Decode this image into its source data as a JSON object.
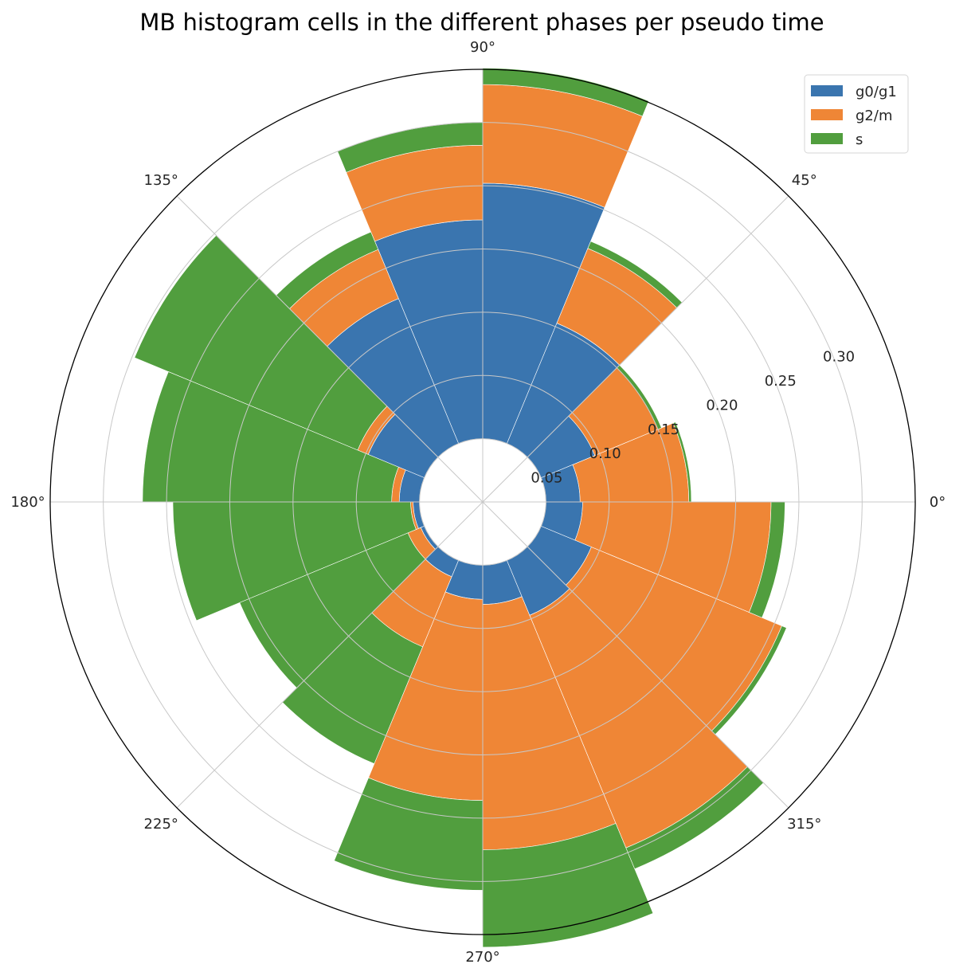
{
  "chart_data": {
    "type": "bar",
    "polar": true,
    "stacked": true,
    "title": "MB histogram cells in the different phases per pseudo time",
    "bottom": 0.05,
    "rmax": 0.342,
    "grid": true,
    "legend_position": "upper right",
    "angle_ticks": [
      {
        "deg": 0,
        "label": "0°"
      },
      {
        "deg": 45,
        "label": "45°"
      },
      {
        "deg": 90,
        "label": "90°"
      },
      {
        "deg": 135,
        "label": "135°"
      },
      {
        "deg": 180,
        "label": "180°"
      },
      {
        "deg": 225,
        "label": "225°"
      },
      {
        "deg": 270,
        "label": "270°"
      },
      {
        "deg": 315,
        "label": "315°"
      }
    ],
    "radial_ticks": [
      {
        "value": 0.05,
        "label": "0.05"
      },
      {
        "value": 0.1,
        "label": "0.10"
      },
      {
        "value": 0.15,
        "label": "0.15"
      },
      {
        "value": 0.2,
        "label": "0.20"
      },
      {
        "value": 0.25,
        "label": "0.25"
      },
      {
        "value": 0.3,
        "label": "0.30"
      }
    ],
    "sector_width_deg": 22.5,
    "x_deg": [
      11.25,
      33.75,
      56.25,
      78.75,
      101.25,
      123.75,
      146.25,
      168.75,
      191.25,
      213.75,
      236.25,
      258.75,
      281.25,
      303.75,
      326.25,
      348.75
    ],
    "series": [
      {
        "name": "g0/g1",
        "color": "#3a75af",
        "values": [
          0.027,
          0.046,
          0.103,
          0.202,
          0.173,
          0.124,
          0.048,
          0.016,
          0.005,
          0.003,
          0.014,
          0.027,
          0.031,
          0.047,
          0.043,
          0.029
        ]
      },
      {
        "name": "g2/m",
        "color": "#ef8636",
        "values": [
          0.086,
          0.054,
          0.064,
          0.078,
          0.059,
          0.042,
          0.009,
          0.006,
          0.002,
          0.011,
          0.06,
          0.159,
          0.194,
          0.199,
          0.163,
          0.149
        ]
      },
      {
        "name": "s",
        "color": "#519e3e",
        "values": [
          0.002,
          0.003,
          0.006,
          0.013,
          0.018,
          0.015,
          0.191,
          0.197,
          0.188,
          0.144,
          0.1,
          0.071,
          0.077,
          0.018,
          0.004,
          0.011
        ]
      }
    ]
  }
}
